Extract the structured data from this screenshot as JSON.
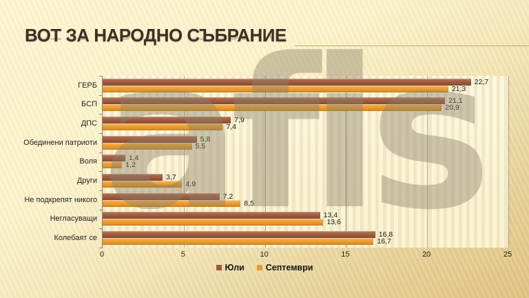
{
  "slide": {
    "title": "ВОТ ЗА НАРОДНО СЪБРАНИЕ",
    "watermark": "afis"
  },
  "colors": {
    "july_bar": "#9d5a3f",
    "july_bar_light": "#b47050",
    "september_bar": "#e99a2b",
    "september_bar_light": "#f4b45a",
    "background_top": "#fdf6d2",
    "background_bottom": "#debf7e",
    "title_text": "#3e3126"
  },
  "chart_data": {
    "type": "bar",
    "orientation": "horizontal",
    "title": "ВОТ ЗА НАРОДНО СЪБРАНИЕ",
    "categories": [
      "ГЕРБ",
      "БСП",
      "ДПС",
      "Обединени патриоти",
      "Воля",
      "Други",
      "Не подкрепят никого",
      "Негласуващи",
      "Колебаят се"
    ],
    "series": [
      {
        "name": "Юли",
        "color": "#9d5a3f",
        "color_light": "#b47050",
        "values": [
          22.7,
          21.1,
          7.9,
          5.8,
          1.4,
          3.7,
          7.2,
          13.4,
          16.8
        ]
      },
      {
        "name": "Септември",
        "color": "#e99a2b",
        "color_light": "#f4b45a",
        "values": [
          21.3,
          20.9,
          7.4,
          5.5,
          1.2,
          4.9,
          8.5,
          13.6,
          16.7
        ]
      }
    ],
    "xlim": [
      0,
      25
    ],
    "xticks": [
      0,
      5,
      10,
      15,
      20,
      25
    ],
    "grid": true,
    "legend_position": "bottom",
    "decimal_separator": ","
  }
}
